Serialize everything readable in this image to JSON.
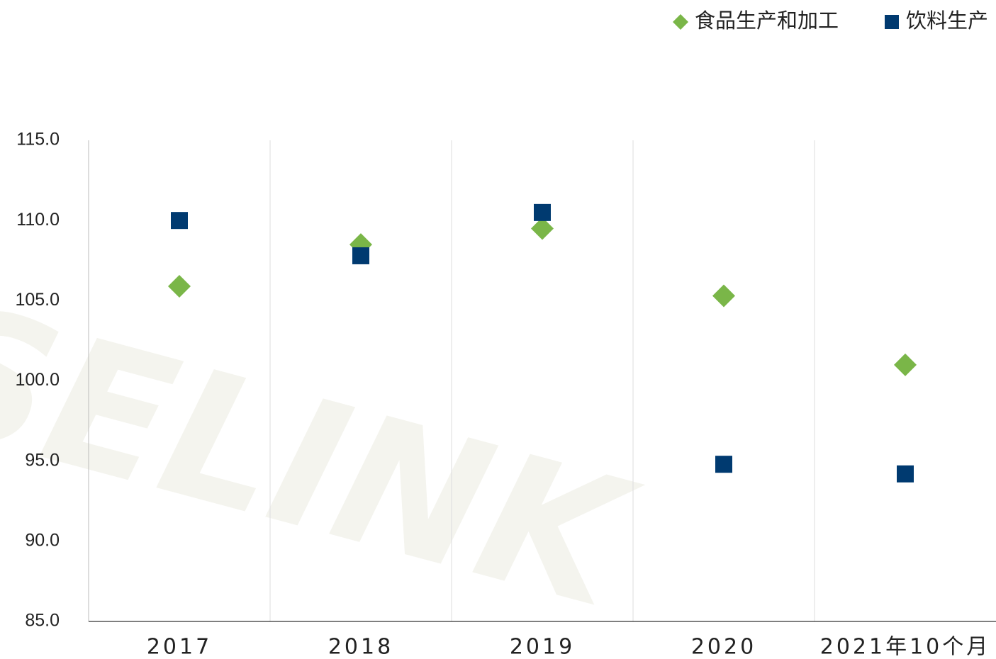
{
  "chart_data": {
    "type": "scatter",
    "watermark": "SELINK",
    "categories": [
      "2017",
      "2018",
      "2019",
      "2020",
      "2021年10个月"
    ],
    "series": [
      {
        "name": "食品生产和加工",
        "color": "#7ab648",
        "marker": "diamond",
        "values": [
          105.9,
          108.5,
          109.5,
          105.3,
          101.0
        ]
      },
      {
        "name": "饮料生产",
        "color": "#003a70",
        "marker": "square",
        "values": [
          110.0,
          107.8,
          110.5,
          94.8,
          94.2
        ]
      }
    ],
    "ylim": [
      85,
      115
    ],
    "yticks": [
      {
        "value": 85,
        "label": "85.0"
      },
      {
        "value": 90,
        "label": "90.0"
      },
      {
        "value": 95,
        "label": "95.0"
      },
      {
        "value": 100,
        "label": "100.0"
      },
      {
        "value": 105,
        "label": "105.0"
      },
      {
        "value": 110,
        "label": "110.0"
      },
      {
        "value": 115,
        "label": "115.0"
      }
    ],
    "legend": "top-right"
  }
}
